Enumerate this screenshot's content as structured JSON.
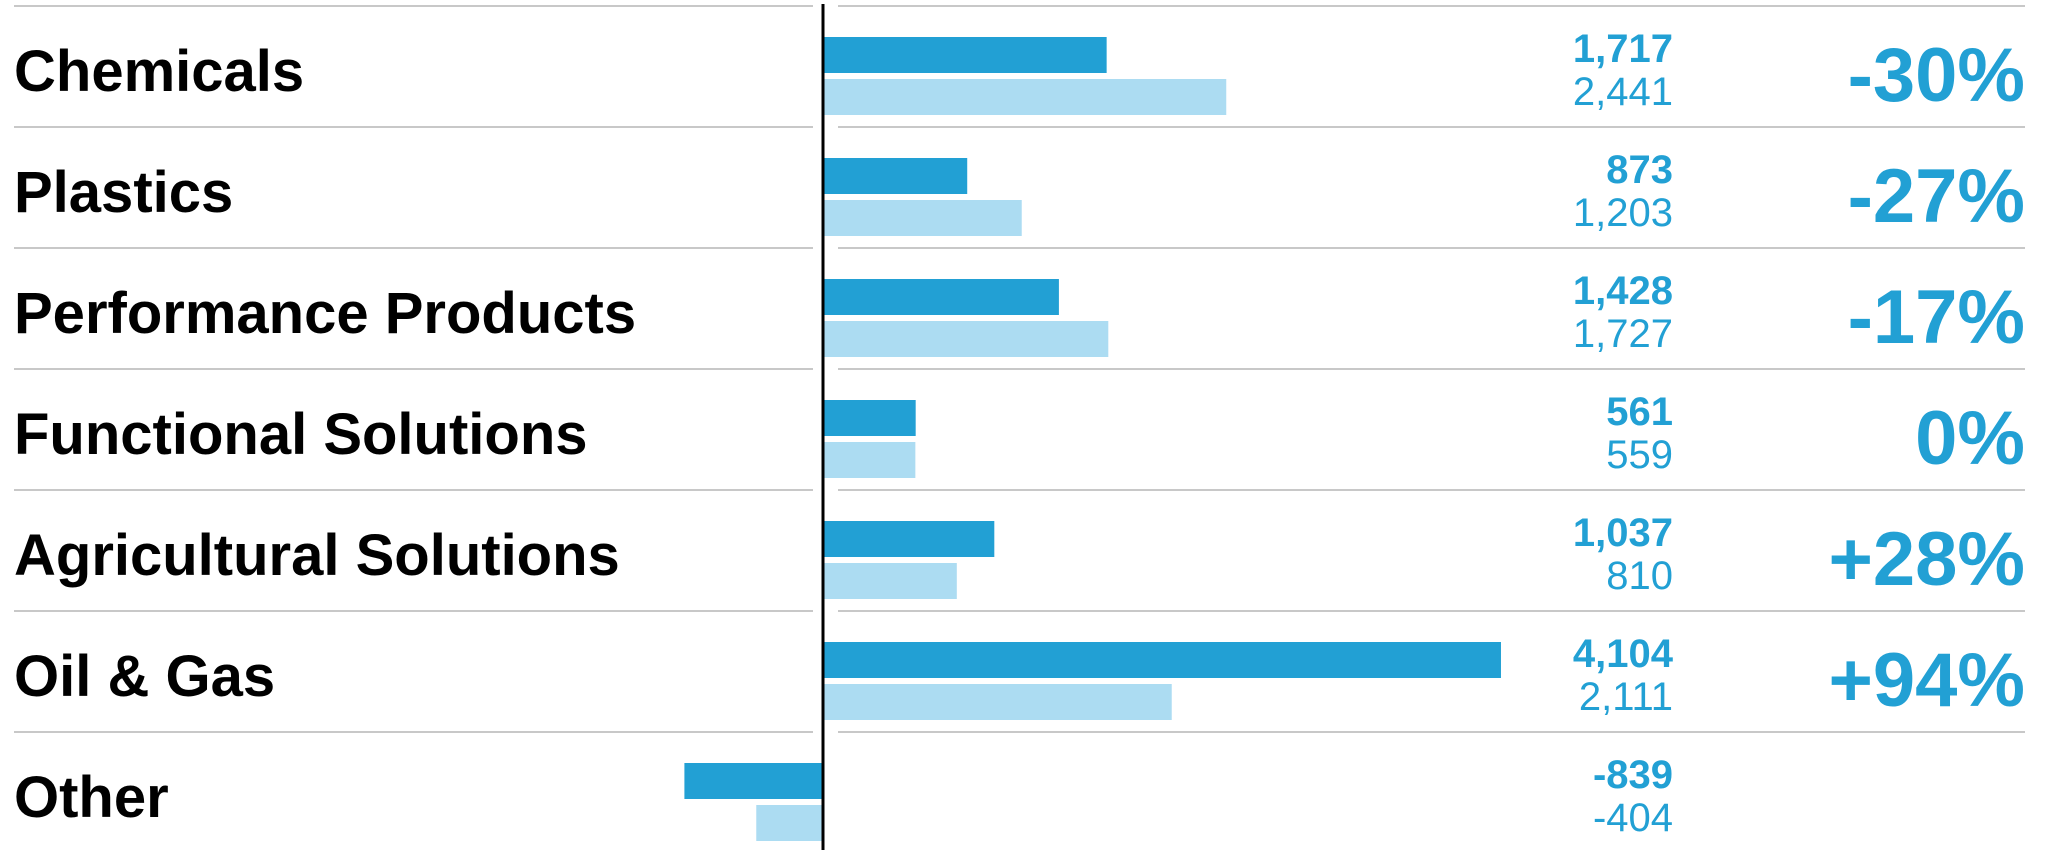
{
  "chart_data": {
    "type": "bar",
    "orientation": "horizontal",
    "categories": [
      "Chemicals",
      "Plastics",
      "Performance Products",
      "Functional Solutions",
      "Agricultural Solutions",
      "Oil & Gas",
      "Other"
    ],
    "series": [
      {
        "values": [
          1717,
          873,
          1428,
          561,
          1037,
          4104,
          -839
        ],
        "labels": [
          "1,717",
          "873",
          "1,428",
          "561",
          "1,037",
          "4,104",
          "-839"
        ]
      },
      {
        "values": [
          2441,
          1203,
          1727,
          559,
          810,
          2111,
          -404
        ],
        "labels": [
          "2,441",
          "1,203",
          "1,727",
          "559",
          "810",
          "2,111",
          "-404"
        ]
      }
    ],
    "change_labels": [
      "-30%",
      "-27%",
      "-17%",
      "0%",
      "+28%",
      "+94%",
      ""
    ],
    "grid": "horizontal row separators",
    "colors": {
      "current": "#22a0d4",
      "previous": "#acdcf2",
      "text": "#000000",
      "rule": "#c8c8c8",
      "axis": "#000000"
    }
  }
}
